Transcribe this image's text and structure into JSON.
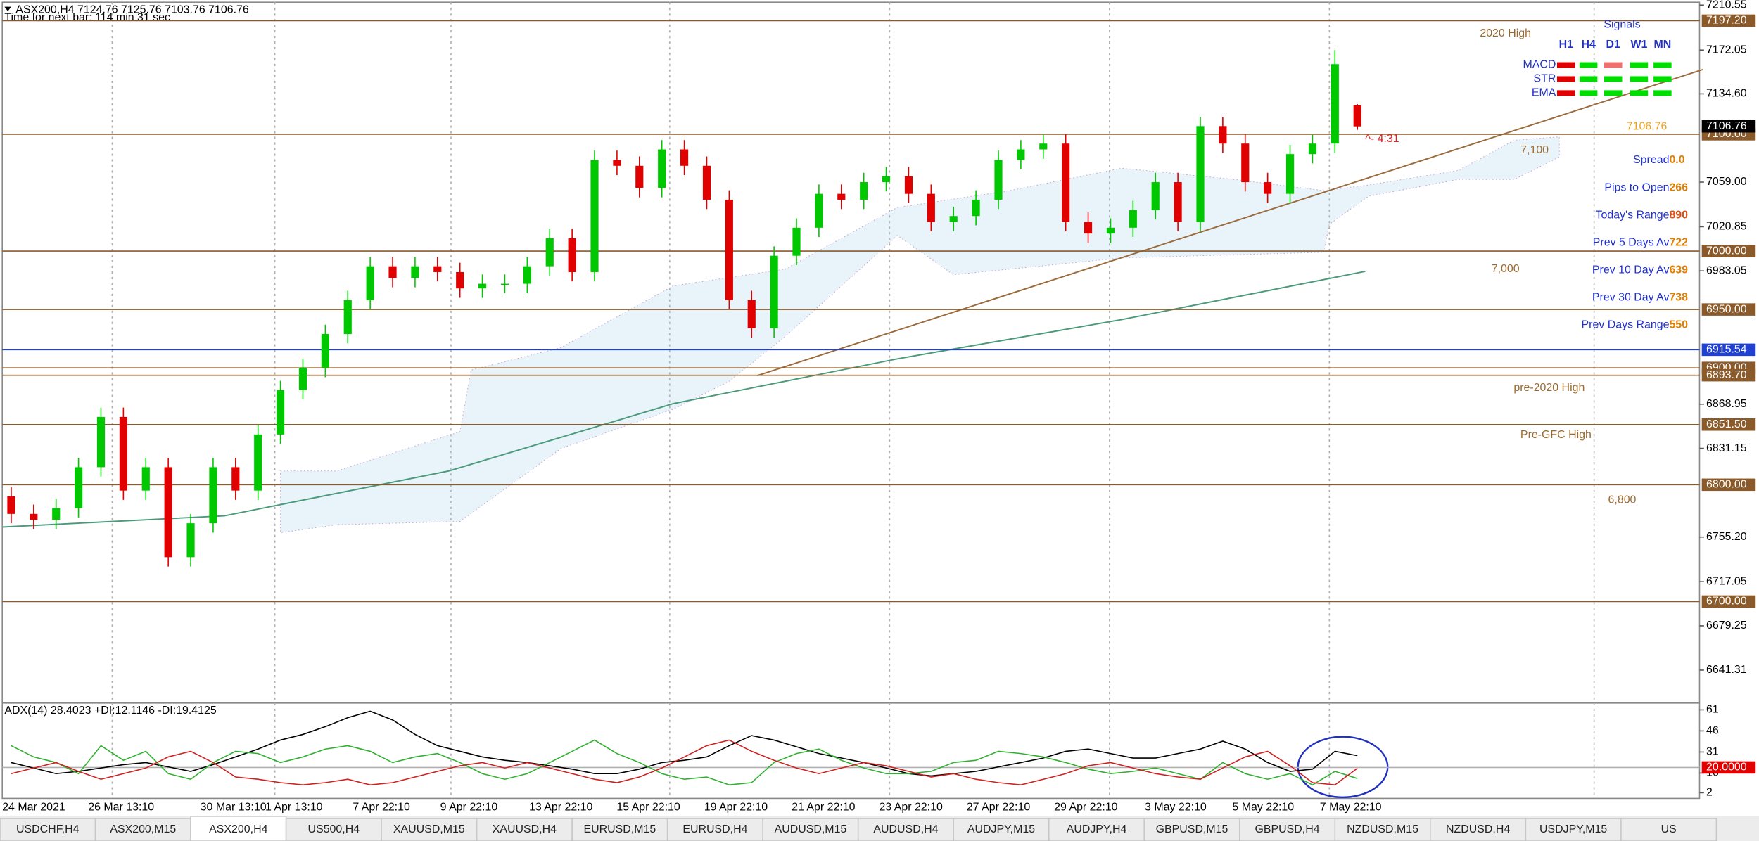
{
  "window": {
    "symbol_line": "ASX200,H4  7124.76 7125.76 7103.76 7106.76",
    "timer": "Time for next bar: 114 min 31 sec"
  },
  "chart_data": [
    {
      "type": "candlestick",
      "open": [
        6790,
        6775,
        6770,
        6780,
        6815,
        6858,
        6795,
        6815,
        6738,
        6767,
        6815,
        6795,
        6843,
        6881,
        6900,
        6929,
        6958,
        6987,
        6977,
        6987,
        6982,
        6968,
        6972,
        6972,
        6987,
        7011,
        6982,
        7078,
        7073,
        7054,
        7087,
        7073,
        7044,
        6958,
        6934,
        6996,
        7020,
        7049,
        7044,
        7059,
        7064,
        7049,
        7025,
        7030,
        7044,
        7078,
        7087,
        7092,
        7025,
        7015,
        7020,
        7035,
        7059,
        7025,
        7107,
        7092,
        7059,
        7049,
        7083,
        7092,
        7124.76
      ],
      "high": [
        6798,
        6783,
        6788,
        6823,
        6866,
        6866,
        6823,
        6823,
        6775,
        6823,
        6823,
        6851,
        6889,
        6908,
        6937,
        6966,
        6995,
        6995,
        6995,
        6995,
        6990,
        6980,
        6980,
        6995,
        7019,
        7019,
        7086,
        7086,
        7081,
        7095,
        7095,
        7081,
        7052,
        6966,
        7004,
        7028,
        7057,
        7057,
        7067,
        7072,
        7072,
        7057,
        7038,
        7052,
        7086,
        7095,
        7100,
        7100,
        7033,
        7028,
        7043,
        7067,
        7067,
        7115,
        7115,
        7100,
        7067,
        7091,
        7100,
        7172,
        7125.76
      ],
      "low": [
        6767,
        6762,
        6762,
        6772,
        6807,
        6787,
        6787,
        6730,
        6730,
        6759,
        6787,
        6787,
        6835,
        6873,
        6892,
        6921,
        6950,
        6969,
        6969,
        6974,
        6960,
        6960,
        6964,
        6964,
        6979,
        6974,
        6974,
        7065,
        7046,
        7046,
        7065,
        7036,
        6950,
        6926,
        6926,
        6988,
        7012,
        7036,
        7036,
        7051,
        7041,
        7017,
        7017,
        7022,
        7036,
        7070,
        7079,
        7017,
        7007,
        7007,
        7012,
        7027,
        7017,
        7017,
        7084,
        7051,
        7041,
        7041,
        7075,
        7084,
        7103.76
      ],
      "close": [
        6775,
        6770,
        6780,
        6815,
        6858,
        6795,
        6815,
        6738,
        6767,
        6815,
        6795,
        6843,
        6881,
        6900,
        6929,
        6958,
        6987,
        6977,
        6987,
        6982,
        6968,
        6972,
        6972,
        6987,
        7011,
        6982,
        7078,
        7073,
        7054,
        7087,
        7073,
        7044,
        6958,
        6934,
        6996,
        7020,
        7049,
        7044,
        7059,
        7064,
        7049,
        7025,
        7030,
        7044,
        7078,
        7087,
        7092,
        7025,
        7015,
        7020,
        7035,
        7059,
        7025,
        7107,
        7092,
        7059,
        7049,
        7083,
        7092,
        7160,
        7106.76
      ],
      "up_color": "#00c800",
      "down_color": "#e00000",
      "ylim": [
        6615,
        7213
      ],
      "yticks": [
        {
          "value": 7210.55,
          "label": "7210.55"
        },
        {
          "value": 7172.05,
          "label": "7172.05"
        },
        {
          "value": 7134.6,
          "label": "7134.60"
        },
        {
          "value": 7059,
          "label": "7059.00"
        },
        {
          "value": 7020.85,
          "label": "7020.85"
        },
        {
          "value": 6983.05,
          "label": "6983.05"
        },
        {
          "value": 6868.95,
          "label": "6868.95"
        },
        {
          "value": 6831.15,
          "label": "6831.15"
        },
        {
          "value": 6755.2,
          "label": "6755.20"
        },
        {
          "value": 6717.05,
          "label": "6717.05"
        },
        {
          "value": 6679.25,
          "label": "6679.25"
        },
        {
          "value": 6641.31,
          "label": "6641.31"
        }
      ],
      "levels": [
        {
          "value": 7197.2,
          "label": "7197.20",
          "color": "#8a5a2b"
        },
        {
          "value": 7100,
          "label": "7100.00",
          "color": "#8a5a2b"
        },
        {
          "value": 7000,
          "label": "7000.00",
          "color": "#8a5a2b"
        },
        {
          "value": 6950,
          "label": "6950.00",
          "color": "#8a5a2b"
        },
        {
          "value": 6915.54,
          "label": "6915.54",
          "color": "#2040d0"
        },
        {
          "value": 6900,
          "label": "6900.00",
          "color": "#8a5a2b"
        },
        {
          "value": 6893.7,
          "label": "6893.70",
          "color": "#8a5a2b"
        },
        {
          "value": 6851.5,
          "label": "6851.50",
          "color": "#8a5a2b"
        },
        {
          "value": 6800,
          "label": "6800.00",
          "color": "#8a5a2b"
        },
        {
          "value": 6700,
          "label": "6700.00",
          "color": "#8a5a2b"
        }
      ],
      "current": {
        "value": 7106.76,
        "label": "7106.76"
      },
      "annotations": [
        {
          "text": "2020 High",
          "color": "#9a6a30"
        },
        {
          "text": "7,100",
          "color": "#9a6a30"
        },
        {
          "text": "7,000",
          "color": "#9a6a30"
        },
        {
          "text": "pre-2020 High",
          "color": "#9a6a30"
        },
        {
          "text": "Pre-GFC High",
          "color": "#9a6a30"
        },
        {
          "text": "6,800",
          "color": "#9a6a30"
        },
        {
          "text": "^- 4:31",
          "color": "#e02020"
        },
        {
          "text": "7106.76",
          "color": "#f0a020"
        }
      ],
      "xtick_labels": [
        "24 Mar 2021",
        "26 Mar 13:10",
        "30 Mar 13:10",
        "1 Apr 13:10",
        "7 Apr 22:10",
        "9 Apr 22:10",
        "13 Apr 22:10",
        "15 Apr 22:10",
        "19 Apr 22:10",
        "21 Apr 22:10",
        "23 Apr 22:10",
        "27 Apr 22:10",
        "29 Apr 22:10",
        "3 May 22:10",
        "5 May 22:10",
        "7 May 22:10"
      ]
    },
    {
      "type": "line",
      "title": "ADX(14) 28.4023 +DI:12.1146 -DI:19.4125",
      "ylim": [
        -2,
        65
      ],
      "yticks": [
        61,
        46,
        31,
        16,
        2
      ],
      "level": {
        "value": 20,
        "label": "20.0000"
      },
      "series": [
        {
          "color": "#000000",
          "values": [
            23.5,
            19.6,
            15.6,
            17.2,
            19.6,
            22.0,
            23.5,
            20.4,
            17.2,
            22.0,
            27.5,
            33.1,
            39.5,
            43.5,
            49.0,
            55.4,
            60,
            53.8,
            43.5,
            35.5,
            31.5,
            27.5,
            25.1,
            23.5,
            21.2,
            18.8,
            15.6,
            15.6,
            18.8,
            23.5,
            25.1,
            27.5,
            35.5,
            42.7,
            39.5,
            34.7,
            29.9,
            26.7,
            23.5,
            19.6,
            15.6,
            14.0,
            15.6,
            17.2,
            20.4,
            23.5,
            26.7,
            31.5,
            33.1,
            29.9,
            26.7,
            26.7,
            29.9,
            33.1,
            38.7,
            33.1,
            23.5,
            17.2,
            18.8,
            31.5,
            28.4023
          ]
        },
        {
          "color": "#30b030",
          "values": [
            35.5,
            27.5,
            23.5,
            15.6,
            35.5,
            25.1,
            31.5,
            15.6,
            11.6,
            23.5,
            31.5,
            29.9,
            23.5,
            27.5,
            33.1,
            35.5,
            31.5,
            23.5,
            27.5,
            29.9,
            23.5,
            15.6,
            11.6,
            15.6,
            23.5,
            31.5,
            39.5,
            29.9,
            23.5,
            15.6,
            11.6,
            13.2,
            7.6,
            9.2,
            23.5,
            29.9,
            33.1,
            25.1,
            19.6,
            15.6,
            15.6,
            17.2,
            23.5,
            25.1,
            31.5,
            29.9,
            27.5,
            23.5,
            18.8,
            15.6,
            17.2,
            19.6,
            15.6,
            11.6,
            23.5,
            15.6,
            11.6,
            15.6,
            7.6,
            17.2,
            12.1146
          ]
        },
        {
          "color": "#d02020",
          "values": [
            15.6,
            19.6,
            23.5,
            17.2,
            11.6,
            15.6,
            19.6,
            27.5,
            31.5,
            23.5,
            13.2,
            11.6,
            9.2,
            7.6,
            9.2,
            11.6,
            7.6,
            9.2,
            13.2,
            17.2,
            21.2,
            23.5,
            19.6,
            23.5,
            19.6,
            15.6,
            11.6,
            9.2,
            13.2,
            19.6,
            27.5,
            35.5,
            39.5,
            31.5,
            25.1,
            19.6,
            15.6,
            19.6,
            23.5,
            21.2,
            17.2,
            13.2,
            15.6,
            11.6,
            9.2,
            7.6,
            11.6,
            15.6,
            21.2,
            23.5,
            19.6,
            15.6,
            13.2,
            11.6,
            19.6,
            27.5,
            31.5,
            21.2,
            9.2,
            7.6,
            19.4125
          ]
        }
      ]
    }
  ],
  "signals": {
    "title": "Signals",
    "columns": [
      "H1",
      "H4",
      "D1",
      "W1",
      "MN"
    ],
    "rows": [
      {
        "label": "MACD",
        "colors": [
          "#e00000",
          "#00dd00",
          "#f07070",
          "#00dd00",
          "#00dd00"
        ]
      },
      {
        "label": "STR",
        "colors": [
          "#e00000",
          "#00dd00",
          "#00dd00",
          "#00dd00",
          "#00dd00"
        ]
      },
      {
        "label": "EMA",
        "colors": [
          "#e00000",
          "#00dd00",
          "#00dd00",
          "#00dd00",
          "#00dd00"
        ]
      }
    ]
  },
  "info": {
    "rows": [
      {
        "label": "Spread",
        "value": "0.0"
      },
      {
        "label": "Pips to Open",
        "value": "266"
      },
      {
        "label": "Today's Range",
        "value": "890"
      },
      {
        "label": "Prev 5 Days Av",
        "value": "722"
      },
      {
        "label": "Prev 10 Day Av",
        "value": "639"
      },
      {
        "label": "Prev 30 Day Av",
        "value": "738"
      },
      {
        "label": "Prev Days Range",
        "value": "550"
      }
    ]
  },
  "tabs": [
    "USDCHF,H4",
    "ASX200,M15",
    "ASX200,H4",
    "US500,H4",
    "XAUUSD,M15",
    "XAUUSD,H4",
    "EURUSD,M15",
    "EURUSD,H4",
    "AUDUSD,M15",
    "AUDUSD,H4",
    "AUDJPY,M15",
    "AUDJPY,H4",
    "GBPUSD,M15",
    "GBPUSD,H4",
    "NZDUSD,M15",
    "NZDUSD,H4",
    "USDJPY,M15",
    "US"
  ]
}
